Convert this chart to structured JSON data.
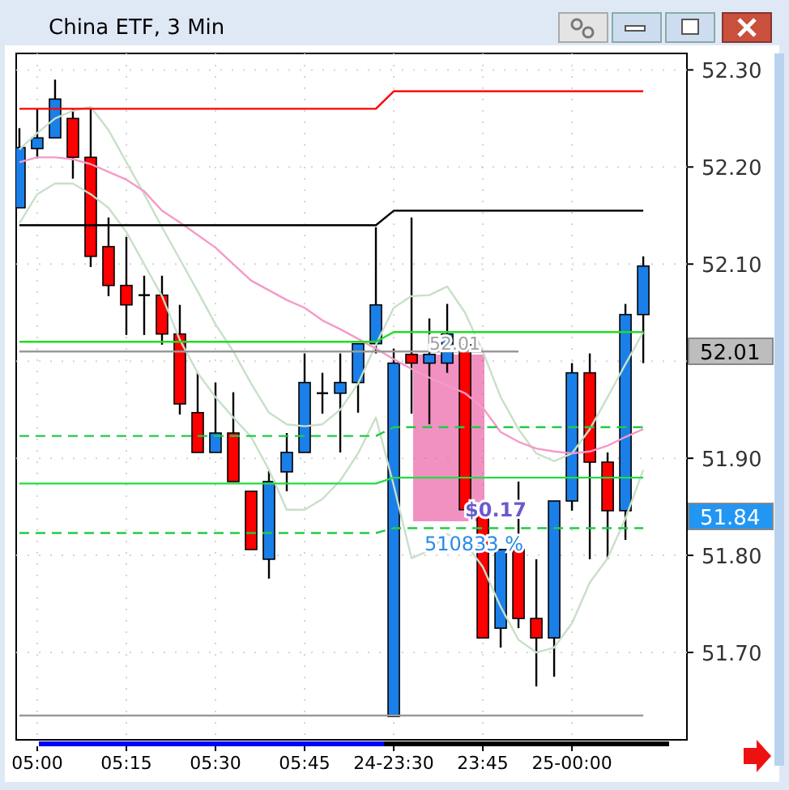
{
  "chart_data": {
    "type": "candlestick",
    "title": "China ETF, 3 Min",
    "categories": [
      null,
      "05:00",
      null,
      null,
      null,
      null,
      "05:15",
      null,
      null,
      null,
      null,
      "05:30",
      null,
      null,
      null,
      null,
      "05:45",
      null,
      null,
      null,
      null,
      "24-23:30",
      null,
      null,
      null,
      null,
      "23:45",
      null,
      null,
      null,
      null,
      "25-00:00",
      null,
      null,
      null,
      null
    ],
    "ohlc": [
      [
        52.158,
        52.24,
        52.158,
        52.22
      ],
      [
        52.219,
        52.26,
        52.209,
        52.23
      ],
      [
        52.23,
        52.29,
        52.23,
        52.27
      ],
      [
        52.25,
        52.26,
        52.188,
        52.21
      ],
      [
        52.21,
        52.26,
        52.097,
        52.108
      ],
      [
        52.118,
        52.148,
        52.067,
        52.078
      ],
      [
        52.078,
        52.128,
        52.027,
        52.058
      ],
      [
        52.068,
        52.088,
        52.027,
        52.068
      ],
      [
        52.068,
        52.088,
        52.017,
        52.028
      ],
      [
        52.028,
        52.058,
        51.945,
        51.956
      ],
      [
        51.947,
        51.988,
        51.906,
        51.906
      ],
      [
        51.906,
        51.978,
        51.906,
        51.926
      ],
      [
        51.926,
        51.968,
        51.876,
        51.876
      ],
      [
        51.866,
        51.866,
        51.806,
        51.806
      ],
      [
        51.796,
        51.887,
        51.776,
        51.876
      ],
      [
        51.886,
        51.926,
        51.866,
        51.906
      ],
      [
        51.906,
        52.008,
        51.906,
        51.978
      ],
      [
        51.967,
        51.988,
        51.946,
        51.967
      ],
      [
        51.967,
        52.008,
        51.906,
        51.978
      ],
      [
        51.978,
        52.018,
        51.947,
        52.018
      ],
      [
        52.018,
        52.138,
        52.008,
        52.058
      ],
      [
        51.634,
        52.013,
        51.634,
        51.998
      ],
      [
        52.007,
        52.148,
        51.946,
        51.998
      ],
      [
        51.998,
        52.044,
        51.935,
        52.007
      ],
      [
        51.998,
        52.059,
        51.988,
        52.028
      ],
      [
        52.017,
        52.017,
        51.847,
        51.847
      ],
      [
        51.845,
        51.845,
        51.715,
        51.715
      ],
      [
        51.725,
        51.806,
        51.705,
        51.806
      ],
      [
        51.806,
        51.876,
        51.725,
        51.735
      ],
      [
        51.735,
        51.796,
        51.665,
        51.715
      ],
      [
        51.715,
        51.856,
        51.675,
        51.856
      ],
      [
        51.856,
        51.998,
        51.846,
        51.988
      ],
      [
        51.988,
        52.008,
        51.796,
        51.896
      ],
      [
        51.896,
        51.906,
        51.796,
        51.846
      ],
      [
        51.846,
        52.059,
        51.816,
        52.048
      ],
      [
        52.048,
        52.108,
        51.998,
        52.098
      ]
    ],
    "colors": [
      "#1a7fe8",
      "#1a7fe8",
      "#1a7fe8",
      "#ff0000",
      "#ff0000",
      "#ff0000",
      "#ff0000",
      "#000000",
      "#ff0000",
      "#ff0000",
      "#ff0000",
      "#1a7fe8",
      "#ff0000",
      "#ff0000",
      "#1a7fe8",
      "#1a7fe8",
      "#1a7fe8",
      "#000000",
      "#1a7fe8",
      "#1a7fe8",
      "#1a7fe8",
      "#1a7fe8",
      "#ff0000",
      "#1a7fe8",
      "#1a7fe8",
      "#ff0000",
      "#ff0000",
      "#1a7fe8",
      "#ff0000",
      "#ff0000",
      "#1a7fe8",
      "#1a7fe8",
      "#ff0000",
      "#ff0000",
      "#1a7fe8",
      "#1a7fe8"
    ],
    "series": [
      {
        "type": "line",
        "color": "#c8dfc8",
        "line_style": "solid",
        "values": [
          52.218,
          52.235,
          52.25,
          52.258,
          52.262,
          52.238,
          52.205,
          52.172,
          52.138,
          52.105,
          52.072,
          52.038,
          52.01,
          51.977,
          51.947,
          51.935,
          51.933,
          51.935,
          51.95,
          51.977,
          52.017,
          52.055,
          52.067,
          52.068,
          52.077,
          52.05,
          52.01,
          51.963,
          51.93,
          51.905,
          51.897,
          51.905,
          51.93,
          51.963,
          51.997,
          52.03
        ]
      },
      {
        "type": "line",
        "color": "#c8dfc8",
        "line_style": "solid",
        "values": [
          52.142,
          52.172,
          52.183,
          52.183,
          52.172,
          52.158,
          52.133,
          52.1,
          52.067,
          52.022,
          51.988,
          51.963,
          51.942,
          51.922,
          51.888,
          51.847,
          51.847,
          51.858,
          51.877,
          51.905,
          51.942,
          51.872,
          51.797,
          51.805,
          51.822,
          51.813,
          51.788,
          51.747,
          51.713,
          51.7,
          51.705,
          51.73,
          51.772,
          51.797,
          51.838,
          51.888
        ]
      },
      {
        "type": "line",
        "color": "#f59ac8",
        "line_style": "solid",
        "values": [
          52.205,
          52.21,
          52.21,
          52.208,
          52.203,
          52.195,
          52.187,
          52.175,
          52.155,
          52.143,
          52.13,
          52.117,
          52.1,
          52.083,
          52.073,
          52.063,
          52.055,
          52.042,
          52.033,
          52.023,
          52.013,
          52.002,
          51.992,
          51.983,
          51.975,
          51.967,
          51.952,
          51.927,
          51.917,
          51.91,
          51.907,
          51.905,
          51.907,
          51.913,
          51.922,
          51.93
        ]
      },
      {
        "type": "line",
        "color": "#ff0000",
        "line_style": "solid",
        "values": [
          52.26,
          52.26,
          52.26,
          52.26,
          52.26,
          52.26,
          52.26,
          52.26,
          52.26,
          52.26,
          52.26,
          52.26,
          52.26,
          52.26,
          52.26,
          52.26,
          52.26,
          52.26,
          52.26,
          52.26,
          52.26,
          52.278,
          52.278,
          52.278,
          52.278,
          52.278,
          52.278,
          52.278,
          52.278,
          52.278,
          52.278,
          52.278,
          52.278,
          52.278,
          52.278,
          52.278
        ]
      },
      {
        "type": "line",
        "color": "#000000",
        "line_style": "solid",
        "values": [
          52.14,
          52.14,
          52.14,
          52.14,
          52.14,
          52.14,
          52.14,
          52.14,
          52.14,
          52.14,
          52.14,
          52.14,
          52.14,
          52.14,
          52.14,
          52.14,
          52.14,
          52.14,
          52.14,
          52.14,
          52.14,
          52.155,
          52.155,
          52.155,
          52.155,
          52.155,
          52.155,
          52.155,
          52.155,
          52.155,
          52.155,
          52.155,
          52.155,
          52.155,
          52.155,
          52.155
        ]
      },
      {
        "type": "line",
        "color": "#999999",
        "line_style": "solid",
        "values": [
          52.01,
          52.01,
          52.01,
          52.01,
          52.01,
          52.01,
          52.01,
          52.01,
          52.01,
          52.01,
          52.01,
          52.01,
          52.01,
          52.01,
          52.01,
          52.01,
          52.01,
          52.01,
          52.01,
          52.01,
          52.01,
          52.01,
          52.01,
          52.01,
          52.01,
          52.01,
          52.01,
          52.01,
          52.01,
          null,
          null,
          null,
          null,
          null,
          null,
          null
        ]
      },
      {
        "type": "line",
        "color": "#999999",
        "line_style": "solid",
        "values": [
          51.635,
          51.635,
          51.635,
          51.635,
          51.635,
          51.635,
          51.635,
          51.635,
          51.635,
          51.635,
          51.635,
          51.635,
          51.635,
          51.635,
          51.635,
          51.635,
          51.635,
          51.635,
          51.635,
          51.635,
          51.635,
          51.635,
          51.635,
          51.635,
          51.635,
          51.635,
          51.635,
          51.635,
          51.635,
          51.635,
          51.635,
          51.635,
          51.635,
          51.635,
          51.635,
          51.635
        ]
      },
      {
        "type": "line",
        "color": "#22dd22",
        "line_style": "solid",
        "values": [
          52.02,
          52.02,
          52.02,
          52.02,
          52.02,
          52.02,
          52.02,
          52.02,
          52.02,
          52.02,
          52.02,
          52.02,
          52.02,
          52.02,
          52.02,
          52.02,
          52.02,
          52.02,
          52.02,
          52.02,
          52.02,
          52.03,
          52.03,
          52.03,
          52.03,
          52.03,
          52.03,
          52.03,
          52.03,
          52.03,
          52.03,
          52.03,
          52.03,
          52.03,
          52.03,
          52.03
        ]
      },
      {
        "type": "line",
        "color": "#22dd44",
        "line_style": "solid",
        "values": [
          51.874,
          51.874,
          51.874,
          51.874,
          51.874,
          51.874,
          51.874,
          51.874,
          51.874,
          51.874,
          51.874,
          51.874,
          51.874,
          51.874,
          51.874,
          51.874,
          51.874,
          51.874,
          51.874,
          51.874,
          51.874,
          51.88,
          51.88,
          51.88,
          51.88,
          51.88,
          51.88,
          51.88,
          51.88,
          51.88,
          51.88,
          51.88,
          51.88,
          51.88,
          51.88,
          51.88
        ]
      },
      {
        "type": "line",
        "color": "#22cc44",
        "line_style": "dashed",
        "values": [
          51.923,
          51.923,
          51.923,
          51.923,
          51.923,
          51.923,
          51.923,
          51.923,
          51.923,
          51.923,
          51.923,
          51.923,
          51.923,
          51.923,
          51.923,
          51.923,
          51.923,
          51.923,
          51.923,
          51.923,
          51.923,
          51.932,
          51.932,
          51.932,
          51.932,
          51.932,
          51.932,
          51.932,
          51.932,
          51.932,
          51.932,
          51.932,
          51.932,
          51.932,
          51.932,
          51.932
        ]
      },
      {
        "type": "line",
        "color": "#22cc44",
        "line_style": "dashed",
        "values": [
          51.823,
          51.823,
          51.823,
          51.823,
          51.823,
          51.823,
          51.823,
          51.823,
          51.823,
          51.823,
          51.823,
          51.823,
          51.823,
          51.823,
          51.823,
          51.823,
          51.823,
          51.823,
          51.823,
          51.823,
          51.823,
          51.828,
          51.828,
          51.828,
          51.828,
          51.828,
          51.828,
          51.828,
          51.828,
          51.828,
          51.828,
          51.828,
          51.828,
          51.828,
          51.828,
          51.828
        ]
      }
    ],
    "ylim": [
      51.61,
      52.317
    ],
    "yticks": [
      {
        "value": 52.3,
        "label": "52.30"
      },
      {
        "value": 52.2,
        "label": "52.20"
      },
      {
        "value": 52.1,
        "label": "52.10"
      },
      {
        "value": 52.0,
        "label": null
      },
      {
        "value": 51.9,
        "label": "51.90"
      },
      {
        "value": 51.8,
        "label": "51.80"
      },
      {
        "value": 51.7,
        "label": "51.70"
      }
    ],
    "grid": true,
    "annotations": [
      "52.01",
      "51.84",
      "52.01",
      "$0.17",
      "510833 %"
    ]
  }
}
